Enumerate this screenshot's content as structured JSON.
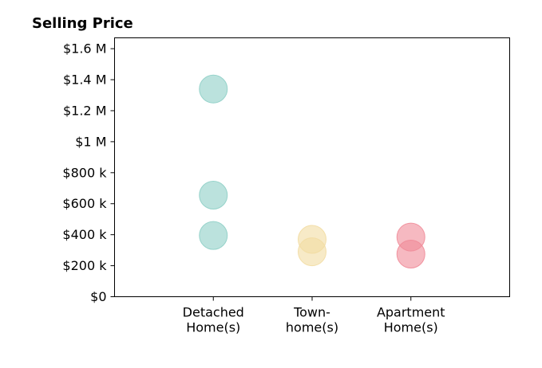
{
  "chart_data": {
    "type": "scatter",
    "title": "Selling Price",
    "xlabel": "",
    "ylabel": "",
    "categories": [
      [
        "Detached",
        "Home(s)"
      ],
      [
        "Town-",
        "home(s)"
      ],
      [
        "Apartment",
        "Home(s)"
      ]
    ],
    "x_range": [
      -1,
      3
    ],
    "ylim": [
      0,
      1670000
    ],
    "y_ticks": [
      0,
      200000,
      400000,
      600000,
      800000,
      1000000,
      1200000,
      1400000,
      1600000
    ],
    "y_tick_labels": [
      "$0",
      "$200 k",
      "$400 k",
      "$600 k",
      "$800 k",
      "$1 M",
      "$1.2 M",
      "$1.4 M",
      "$1.6 M"
    ],
    "grid": false,
    "legend": "none",
    "series": [
      {
        "category_index": 0,
        "color": "#8ecfc6",
        "values": [
          1340000,
          655000,
          395000
        ]
      },
      {
        "category_index": 1,
        "color": "#f2dca2",
        "values": [
          370000,
          290000
        ]
      },
      {
        "category_index": 2,
        "color": "#f08b98",
        "values": [
          385000,
          275000
        ]
      }
    ]
  }
}
